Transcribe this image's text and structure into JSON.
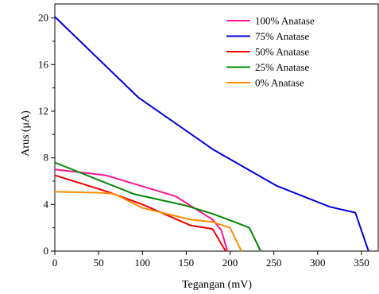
{
  "chart_data": {
    "type": "line",
    "xlabel": "Tegangan (mV)",
    "ylabel": "Arus (μA)",
    "xlim": [
      0,
      370
    ],
    "ylim": [
      0,
      21.2
    ],
    "xticks": [
      0,
      50,
      100,
      150,
      200,
      250,
      300,
      350
    ],
    "yticks": [
      0,
      4,
      8,
      12,
      16,
      20
    ],
    "grid": false,
    "legend_position": "top-right",
    "series": [
      {
        "name": "100% Anatase",
        "color": "#ff1493",
        "x": [
          0,
          58,
          138,
          180,
          190,
          197
        ],
        "y": [
          7.0,
          6.5,
          4.7,
          2.7,
          1.8,
          0
        ]
      },
      {
        "name": "75% Anatase",
        "color": "#0000dd",
        "x": [
          0,
          95,
          181,
          253,
          314,
          343,
          358
        ],
        "y": [
          20.1,
          13.2,
          8.7,
          5.6,
          3.8,
          3.3,
          0
        ]
      },
      {
        "name": "50% Anatase",
        "color": "#ee0000",
        "x": [
          0,
          60,
          100,
          155,
          180,
          195
        ],
        "y": [
          6.5,
          5.1,
          4.0,
          2.2,
          1.9,
          0
        ]
      },
      {
        "name": "25% Anatase",
        "color": "#008800",
        "x": [
          0,
          90,
          150,
          180,
          205,
          222,
          235
        ],
        "y": [
          7.6,
          4.9,
          3.9,
          3.2,
          2.5,
          2.0,
          0
        ]
      },
      {
        "name": "0% Anatase",
        "color": "#ff8c00",
        "x": [
          0,
          55,
          68,
          100,
          155,
          180,
          200,
          213
        ],
        "y": [
          5.1,
          5.0,
          4.9,
          3.7,
          2.7,
          2.5,
          2.0,
          0
        ]
      }
    ]
  }
}
